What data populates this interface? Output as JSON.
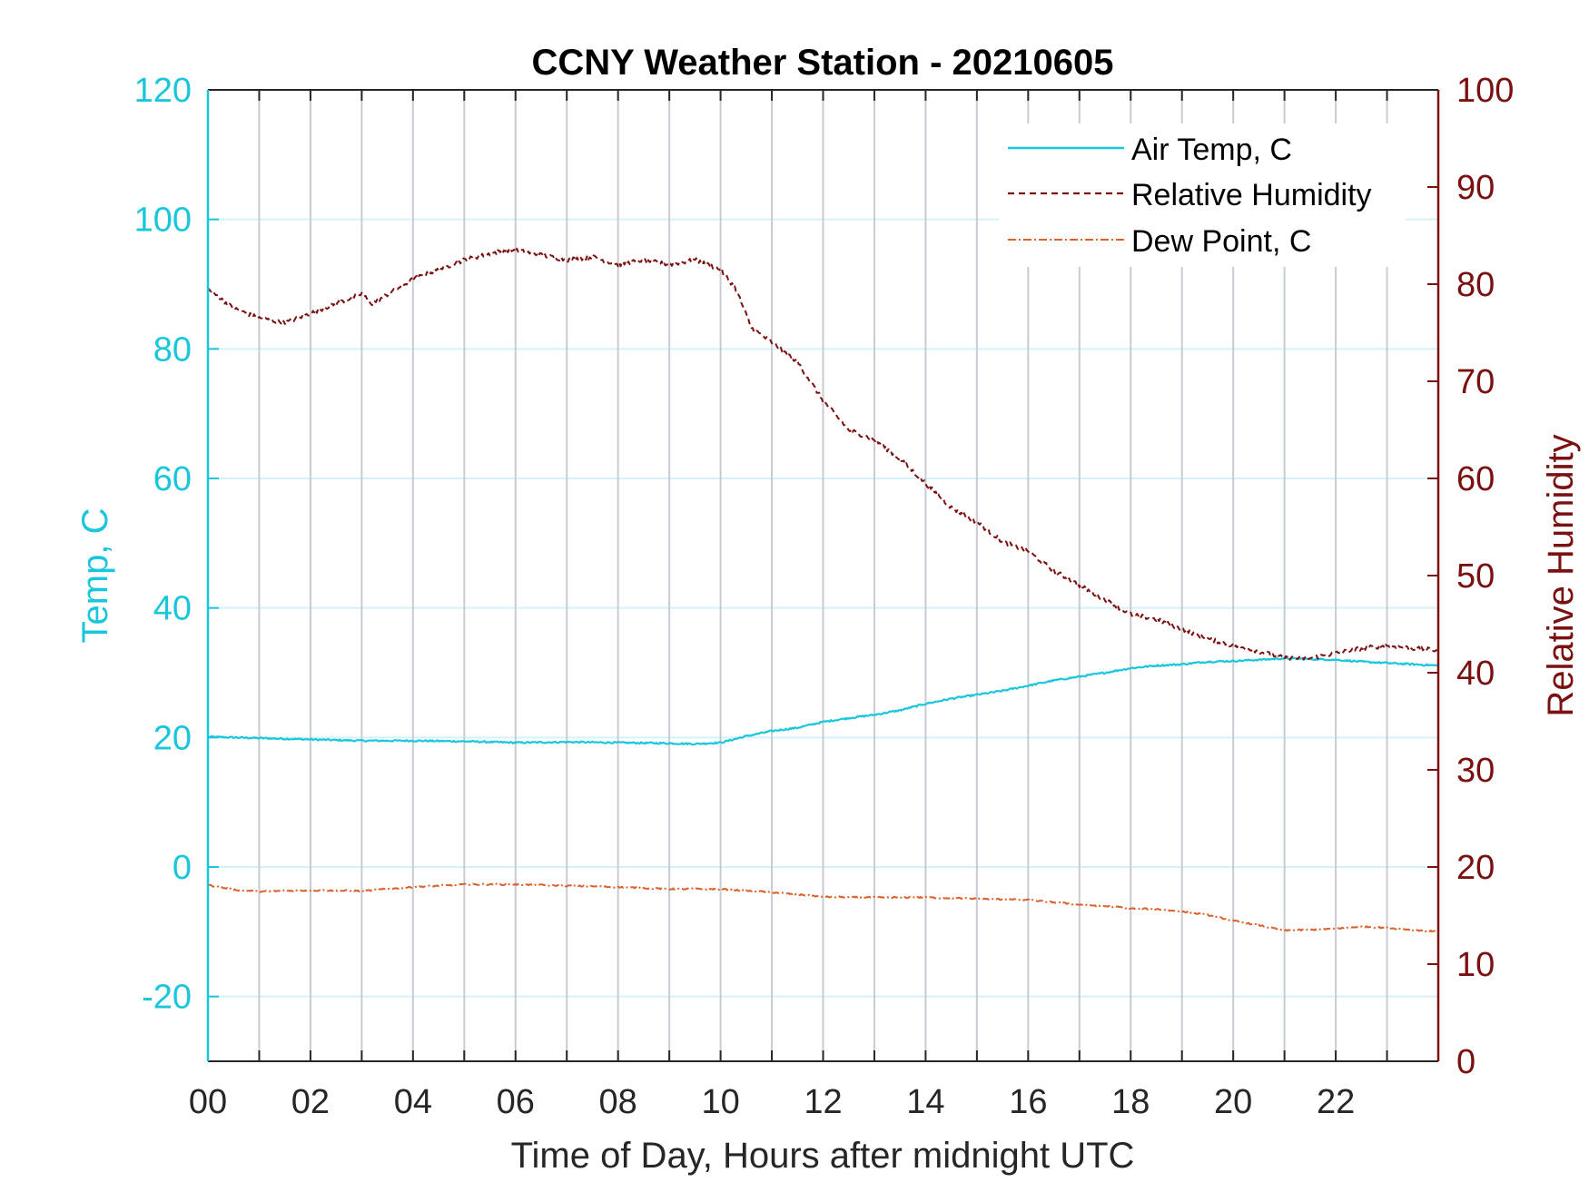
{
  "chart_data": {
    "type": "line",
    "title": "CCNY Weather Station - 20210605",
    "xlabel": "Time of Day, Hours after midnight UTC",
    "ylabel_left": "Temp, C",
    "ylabel_right": "Relative Humidity",
    "xlim": [
      0,
      24
    ],
    "ylim_left": [
      -30,
      120
    ],
    "ylim_right": [
      0,
      100
    ],
    "x_ticks": [
      0,
      2,
      4,
      6,
      8,
      10,
      12,
      14,
      16,
      18,
      20,
      22
    ],
    "x_tick_labels": [
      "00",
      "02",
      "04",
      "06",
      "08",
      "10",
      "12",
      "14",
      "16",
      "18",
      "20",
      "22"
    ],
    "y_left_ticks": [
      -20,
      0,
      20,
      40,
      60,
      80,
      100,
      120
    ],
    "y_left_tick_labels": [
      "-20",
      "0",
      "20",
      "40",
      "60",
      "80",
      "100",
      "120"
    ],
    "y_right_ticks": [
      0,
      10,
      20,
      30,
      40,
      50,
      60,
      70,
      80,
      90,
      100
    ],
    "y_right_tick_labels": [
      "0",
      "10",
      "20",
      "30",
      "40",
      "50",
      "60",
      "70",
      "80",
      "90",
      "100"
    ],
    "grid": "on",
    "legend_location": "top-right",
    "colors": {
      "temp": "#1ac6dc",
      "rh": "#7a1010",
      "dew": "#d9622b",
      "grid_v": "#c8ccd2",
      "grid_h": "#d4f2f7",
      "axis": "#262626"
    },
    "series": [
      {
        "name": "Air Temp, C",
        "axis": "left",
        "style": "solid",
        "x": [
          0,
          1,
          2,
          3,
          4,
          5,
          6,
          7,
          8,
          9,
          9.5,
          10,
          10.5,
          11,
          11.5,
          12,
          12.5,
          13,
          13.5,
          14,
          14.5,
          15,
          15.5,
          16,
          16.5,
          17,
          17.5,
          18,
          18.5,
          19,
          19.5,
          20,
          20.5,
          21,
          21.5,
          22,
          22.5,
          23,
          24
        ],
        "y": [
          20.1,
          19.9,
          19.7,
          19.5,
          19.5,
          19.4,
          19.2,
          19.3,
          19.2,
          19.1,
          19,
          19.2,
          20.2,
          21,
          21.5,
          22.4,
          23,
          23.5,
          24.2,
          25.2,
          26,
          26.6,
          27.2,
          28,
          28.8,
          29.4,
          30,
          30.7,
          31.1,
          31.3,
          31.7,
          31.8,
          32,
          32.2,
          32.1,
          32,
          31.7,
          31.5,
          31.1
        ]
      },
      {
        "name": "Relative Humidity",
        "axis": "right",
        "style": "dashed",
        "x": [
          0,
          0.5,
          1,
          1.5,
          2,
          2.5,
          3,
          3.2,
          4,
          5,
          5.8,
          6,
          7,
          7.5,
          8,
          8.5,
          9,
          9.5,
          10,
          10.3,
          10.6,
          11,
          11.5,
          12,
          12.5,
          13,
          13.5,
          14,
          14.5,
          15,
          15.5,
          16,
          16.5,
          17,
          17.5,
          18,
          18.5,
          19,
          19.5,
          20,
          20.5,
          21,
          21.5,
          22,
          22.5,
          23,
          23.5,
          24
        ],
        "y": [
          79.5,
          77.5,
          76.5,
          76,
          77,
          78,
          79,
          78,
          80.5,
          82.5,
          83.5,
          83.5,
          82.5,
          82.8,
          82,
          82.5,
          82,
          82.5,
          81.5,
          79.5,
          75.5,
          74,
          72,
          68,
          65,
          64,
          62,
          59.5,
          57,
          55.5,
          53.5,
          52.5,
          50.5,
          49,
          47.5,
          46,
          45.5,
          44.5,
          43.5,
          42.8,
          42.2,
          41.5,
          41.5,
          42,
          42.5,
          42.8,
          42.5,
          42.3
        ]
      },
      {
        "name": "Dew Point, C",
        "axis": "left",
        "style": "dashdot",
        "x": [
          0,
          0.5,
          1,
          2,
          3,
          4,
          5,
          6,
          7,
          8,
          9,
          10,
          11,
          12,
          13,
          14,
          15,
          16,
          17,
          17.8,
          18,
          18.5,
          19,
          19.5,
          20,
          20.5,
          21,
          21.5,
          22,
          22.5,
          23,
          24
        ],
        "y": [
          -2.8,
          -3.5,
          -3.8,
          -3.6,
          -3.7,
          -3.1,
          -2.7,
          -2.7,
          -2.9,
          -3.1,
          -3.4,
          -3.4,
          -3.9,
          -4.6,
          -4.7,
          -4.7,
          -4.9,
          -5.1,
          -5.8,
          -6.2,
          -6.4,
          -6.5,
          -6.9,
          -7.4,
          -8.3,
          -9,
          -9.8,
          -9.7,
          -9.5,
          -9.2,
          -9.4,
          -10
        ]
      }
    ]
  }
}
